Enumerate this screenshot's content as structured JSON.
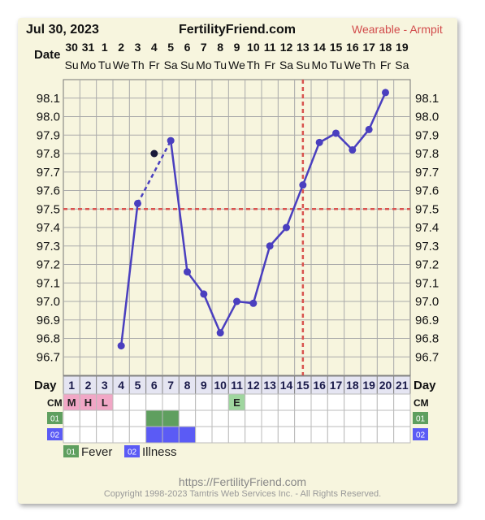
{
  "header": {
    "date": "Jul 30, 2023",
    "site": "FertilityFriend.com",
    "mode": "Wearable - Armpit"
  },
  "labels": {
    "date_row": "Date",
    "day_row": "Day",
    "cm_row": "CM",
    "fever_code": "01",
    "illness_code": "02"
  },
  "legend": [
    {
      "code": "01",
      "label": "Fever",
      "color": "#5f9f5f"
    },
    {
      "code": "02",
      "label": "Illness",
      "color": "#5b5bf5"
    }
  ],
  "footer": {
    "url": "https://FertilityFriend.com",
    "copyright": "Copyright 1998-2023 Tamtris Web Services Inc. - All Rights Reserved."
  },
  "colors": {
    "line": "#4a3fbf",
    "coverline": "#d9534f",
    "grid": "#aaaaaa",
    "menstruation": "#f1a7c6",
    "egg_white": "#9fd69f"
  },
  "chart_data": {
    "type": "line",
    "x": [
      1,
      2,
      3,
      4,
      5,
      6,
      7,
      8,
      9,
      10,
      11,
      12,
      13,
      14,
      15,
      16,
      17,
      18,
      19,
      20,
      21
    ],
    "date_numbers": [
      "30",
      "31",
      "1",
      "2",
      "3",
      "4",
      "5",
      "6",
      "7",
      "8",
      "9",
      "10",
      "11",
      "12",
      "13",
      "14",
      "15",
      "16",
      "17",
      "18",
      "19"
    ],
    "weekdays": [
      "Su",
      "Mo",
      "Tu",
      "We",
      "Th",
      "Fr",
      "Sa",
      "Su",
      "Mo",
      "Tu",
      "We",
      "Th",
      "Fr",
      "Sa",
      "Su",
      "Mo",
      "Tu",
      "We",
      "Th",
      "Fr",
      "Sa"
    ],
    "y_ticks": [
      96.7,
      96.8,
      96.9,
      97.0,
      97.1,
      97.2,
      97.3,
      97.4,
      97.5,
      97.6,
      97.7,
      97.8,
      97.9,
      98.0,
      98.1
    ],
    "ylim": [
      96.6,
      98.2
    ],
    "series": [
      {
        "values": [
          null,
          null,
          null,
          96.76,
          97.53,
          null,
          97.87,
          97.16,
          97.04,
          96.83,
          97.0,
          96.99,
          97.3,
          97.4,
          97.63,
          97.86,
          97.91,
          97.82,
          97.93,
          98.13,
          null
        ]
      }
    ],
    "dashed_segment": {
      "from_day": 5,
      "to_day": 7
    },
    "discarded_points": [
      {
        "day": 6,
        "value": 97.8
      }
    ],
    "coverline": 97.5,
    "ovulation_day": 14.5,
    "cm": [
      "M",
      "H",
      "L",
      "",
      "",
      "",
      "",
      "",
      "",
      "",
      "E",
      "",
      "",
      "",
      "",
      "",
      "",
      "",
      "",
      "",
      ""
    ],
    "fever_days": [
      6,
      7
    ],
    "illness_days": [
      6,
      7,
      8
    ]
  }
}
